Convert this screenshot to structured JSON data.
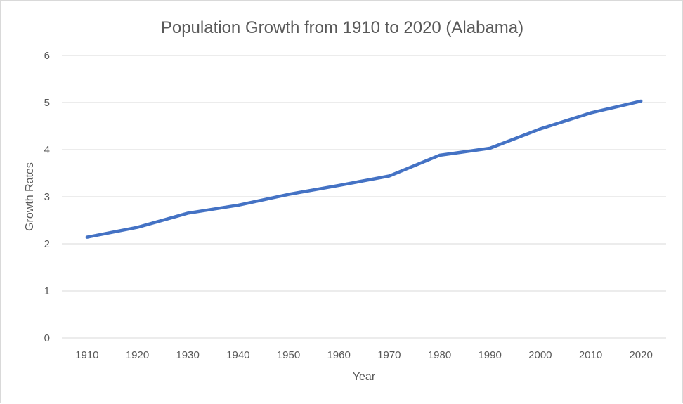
{
  "chart_data": {
    "type": "line",
    "title": "Population Growth from 1910 to 2020 (Alabama)",
    "xlabel": "Year",
    "ylabel": "Growth Rates",
    "categories": [
      "1910",
      "1920",
      "1930",
      "1940",
      "1950",
      "1960",
      "1970",
      "1980",
      "1990",
      "2000",
      "2010",
      "2020"
    ],
    "series": [
      {
        "values": [
          2.14,
          2.35,
          2.65,
          2.82,
          3.05,
          3.24,
          3.44,
          3.88,
          4.03,
          4.44,
          4.78,
          5.03
        ],
        "color": "#4472c4"
      }
    ],
    "yticks": [
      "0",
      "1",
      "2",
      "3",
      "4",
      "5",
      "6"
    ],
    "ylim": [
      0,
      6
    ],
    "grid": true,
    "legend": "none"
  }
}
